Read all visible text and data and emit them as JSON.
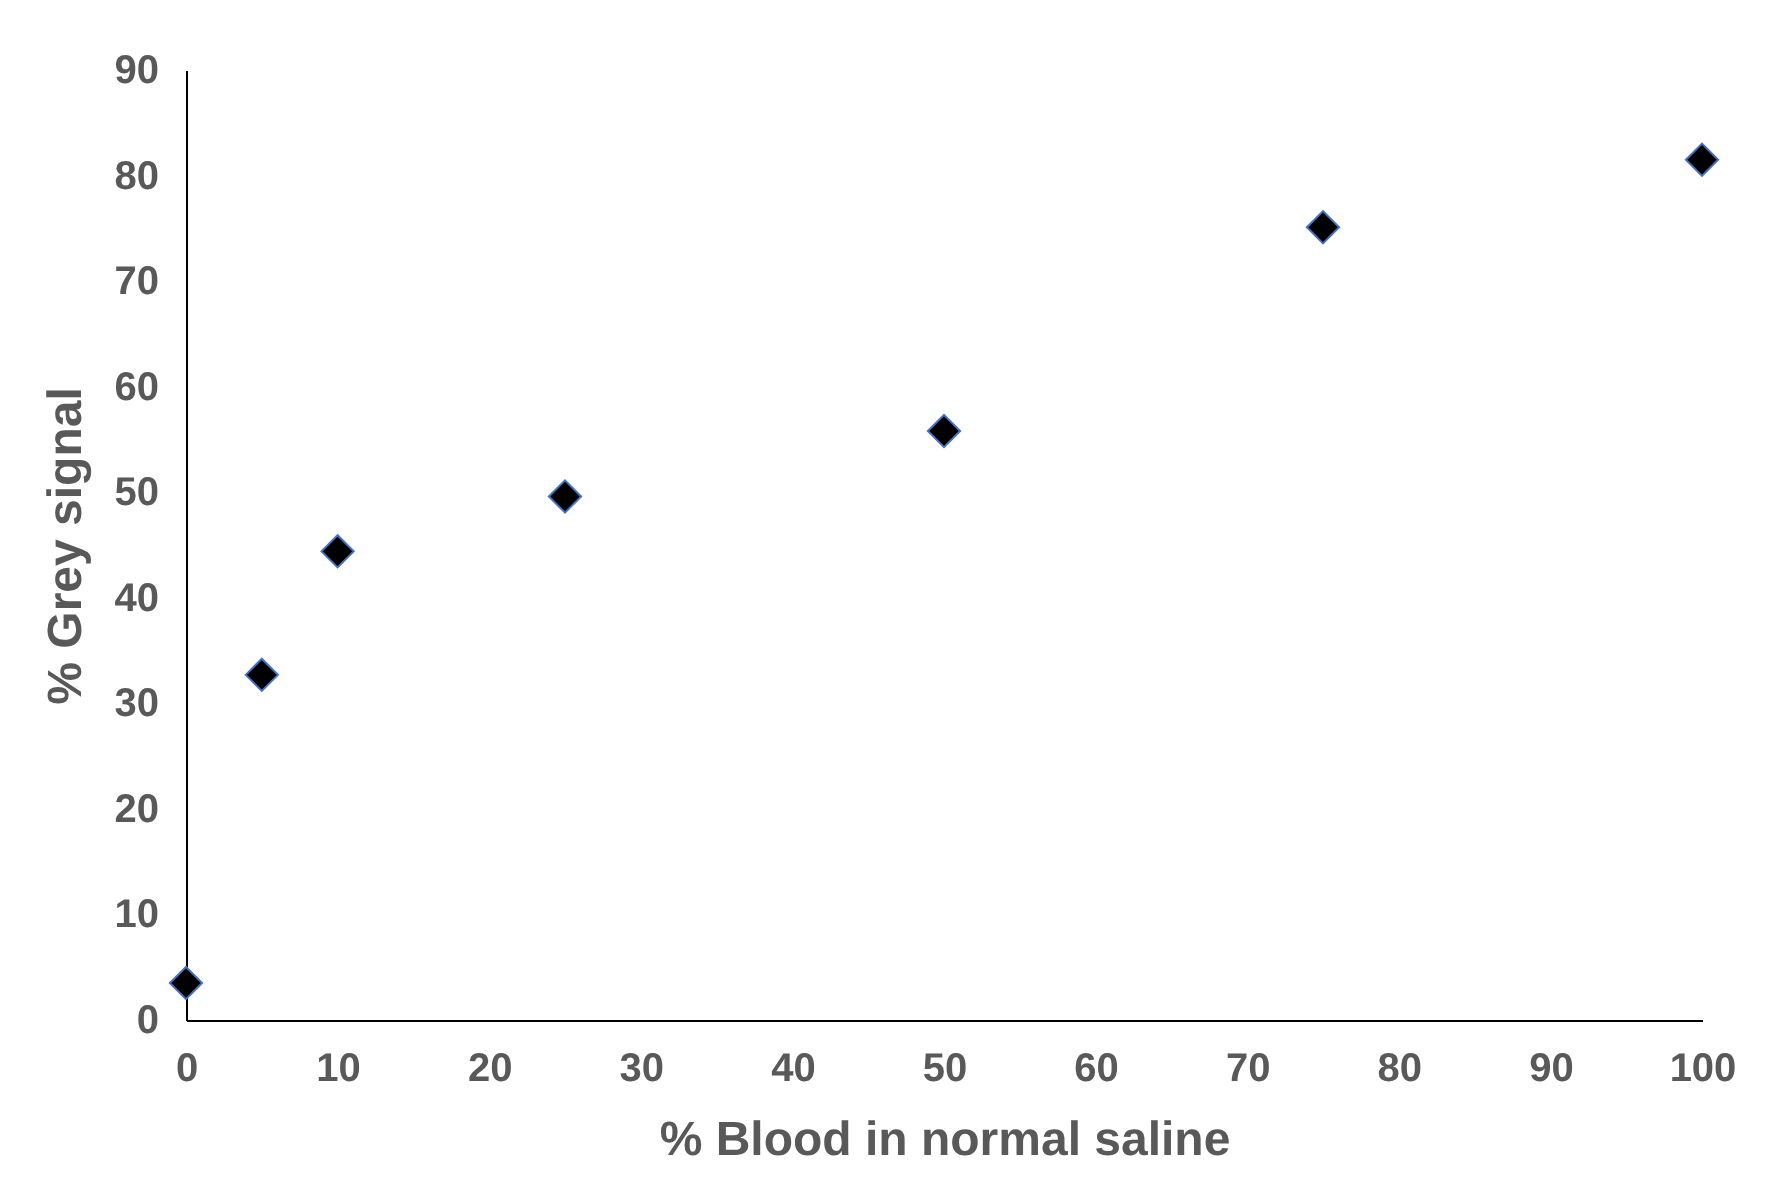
{
  "chart_data": {
    "type": "scatter",
    "xlabel": "% Blood in normal saline",
    "ylabel": "% Grey signal",
    "x": [
      0,
      5,
      10,
      25,
      50,
      75,
      100
    ],
    "series": [
      {
        "color": "#000000",
        "values": [
          3.5,
          32.7,
          44.4,
          49.6,
          55.8,
          75.1,
          81.5
        ]
      }
    ],
    "marker": "diamond",
    "grid": false,
    "xlim": [
      0,
      100
    ],
    "xticks": [
      0,
      10,
      20,
      30,
      40,
      50,
      60,
      70,
      80,
      90,
      100
    ],
    "ylim": [
      0,
      90
    ],
    "yticks": [
      0,
      10,
      20,
      30,
      40,
      50,
      60,
      70,
      80,
      90
    ]
  }
}
